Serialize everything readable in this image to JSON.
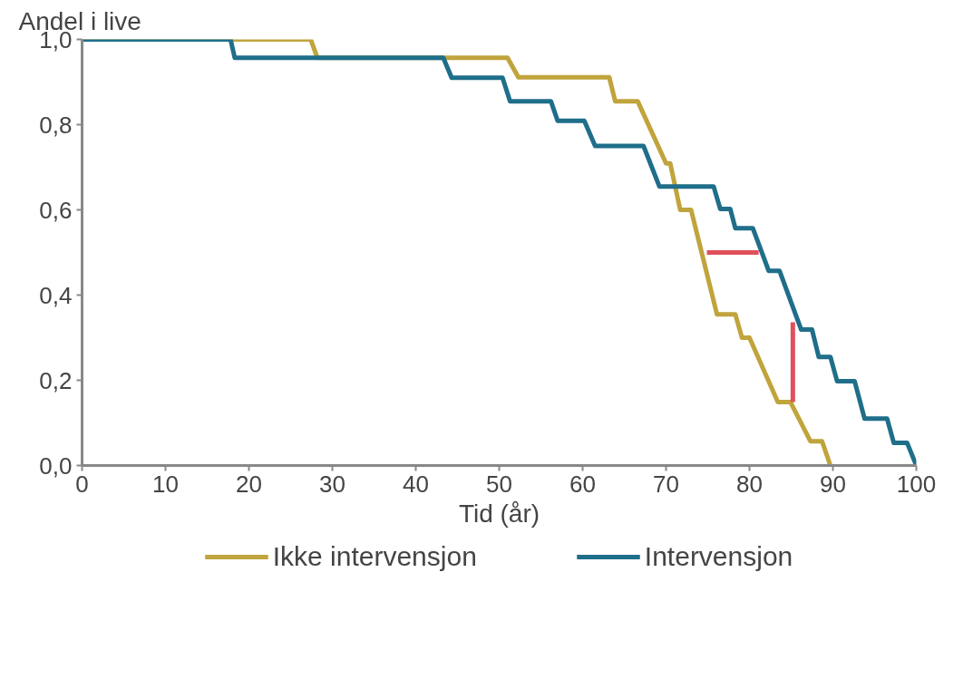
{
  "chart_data": {
    "type": "line",
    "ylabel": "Andel i live",
    "xlabel": "Tid (år)",
    "xlim": [
      0,
      100
    ],
    "ylim": [
      0,
      1.0
    ],
    "xticks": [
      0,
      10,
      20,
      30,
      40,
      50,
      60,
      70,
      80,
      90,
      100
    ],
    "yticks": [
      {
        "value": 0,
        "label": "0,0"
      },
      {
        "value": 0.2,
        "label": "0,2"
      },
      {
        "value": 0.4,
        "label": "0,4"
      },
      {
        "value": 0.6,
        "label": "0,6"
      },
      {
        "value": 0.8,
        "label": "0,8"
      },
      {
        "value": 1.0,
        "label": "1,0"
      }
    ],
    "grid": false,
    "legend": "bottom",
    "marker": "none",
    "line_style": "solid",
    "series": [
      {
        "name": "Ikke intervensjon",
        "color": "#c0a43c",
        "x": [
          0,
          27.4,
          28.2,
          51,
          52.3,
          63.2,
          63.9,
          66.6,
          70,
          70.5,
          71.7,
          73,
          76.1,
          78.3,
          79.1,
          80,
          83.4,
          84.9,
          87.3,
          88.7,
          89.7
        ],
        "values": [
          1.0,
          1.0,
          0.957,
          0.957,
          0.911,
          0.911,
          0.855,
          0.855,
          0.709,
          0.709,
          0.6,
          0.6,
          0.355,
          0.355,
          0.3,
          0.3,
          0.149,
          0.149,
          0.057,
          0.057,
          0
        ]
      },
      {
        "name": "Intervensjon",
        "color": "#1f6e8a",
        "x": [
          0,
          17.8,
          18.3,
          43.3,
          44.3,
          50.4,
          51.3,
          56.2,
          57,
          60.2,
          61.5,
          67.3,
          69.2,
          75.7,
          76.5,
          77.7,
          78.3,
          80.4,
          82.3,
          83.6,
          86.2,
          87.5,
          88.3,
          89.7,
          90.5,
          92.6,
          93.8,
          96.5,
          97.3,
          98.9,
          100
        ],
        "values": [
          1.0,
          1.0,
          0.957,
          0.957,
          0.91,
          0.91,
          0.855,
          0.855,
          0.809,
          0.809,
          0.75,
          0.75,
          0.655,
          0.655,
          0.602,
          0.602,
          0.557,
          0.557,
          0.457,
          0.457,
          0.319,
          0.319,
          0.255,
          0.255,
          0.198,
          0.198,
          0.11,
          0.11,
          0.053,
          0.053,
          0
        ]
      },
      {
        "color": "#e0505a",
        "x": [
          74.9,
          81.1
        ],
        "values": [
          0.5,
          0.5
        ]
      },
      {
        "color": "#e0505a",
        "x": [
          85.2,
          85.2
        ],
        "values": [
          0.336,
          0.149
        ]
      }
    ]
  }
}
